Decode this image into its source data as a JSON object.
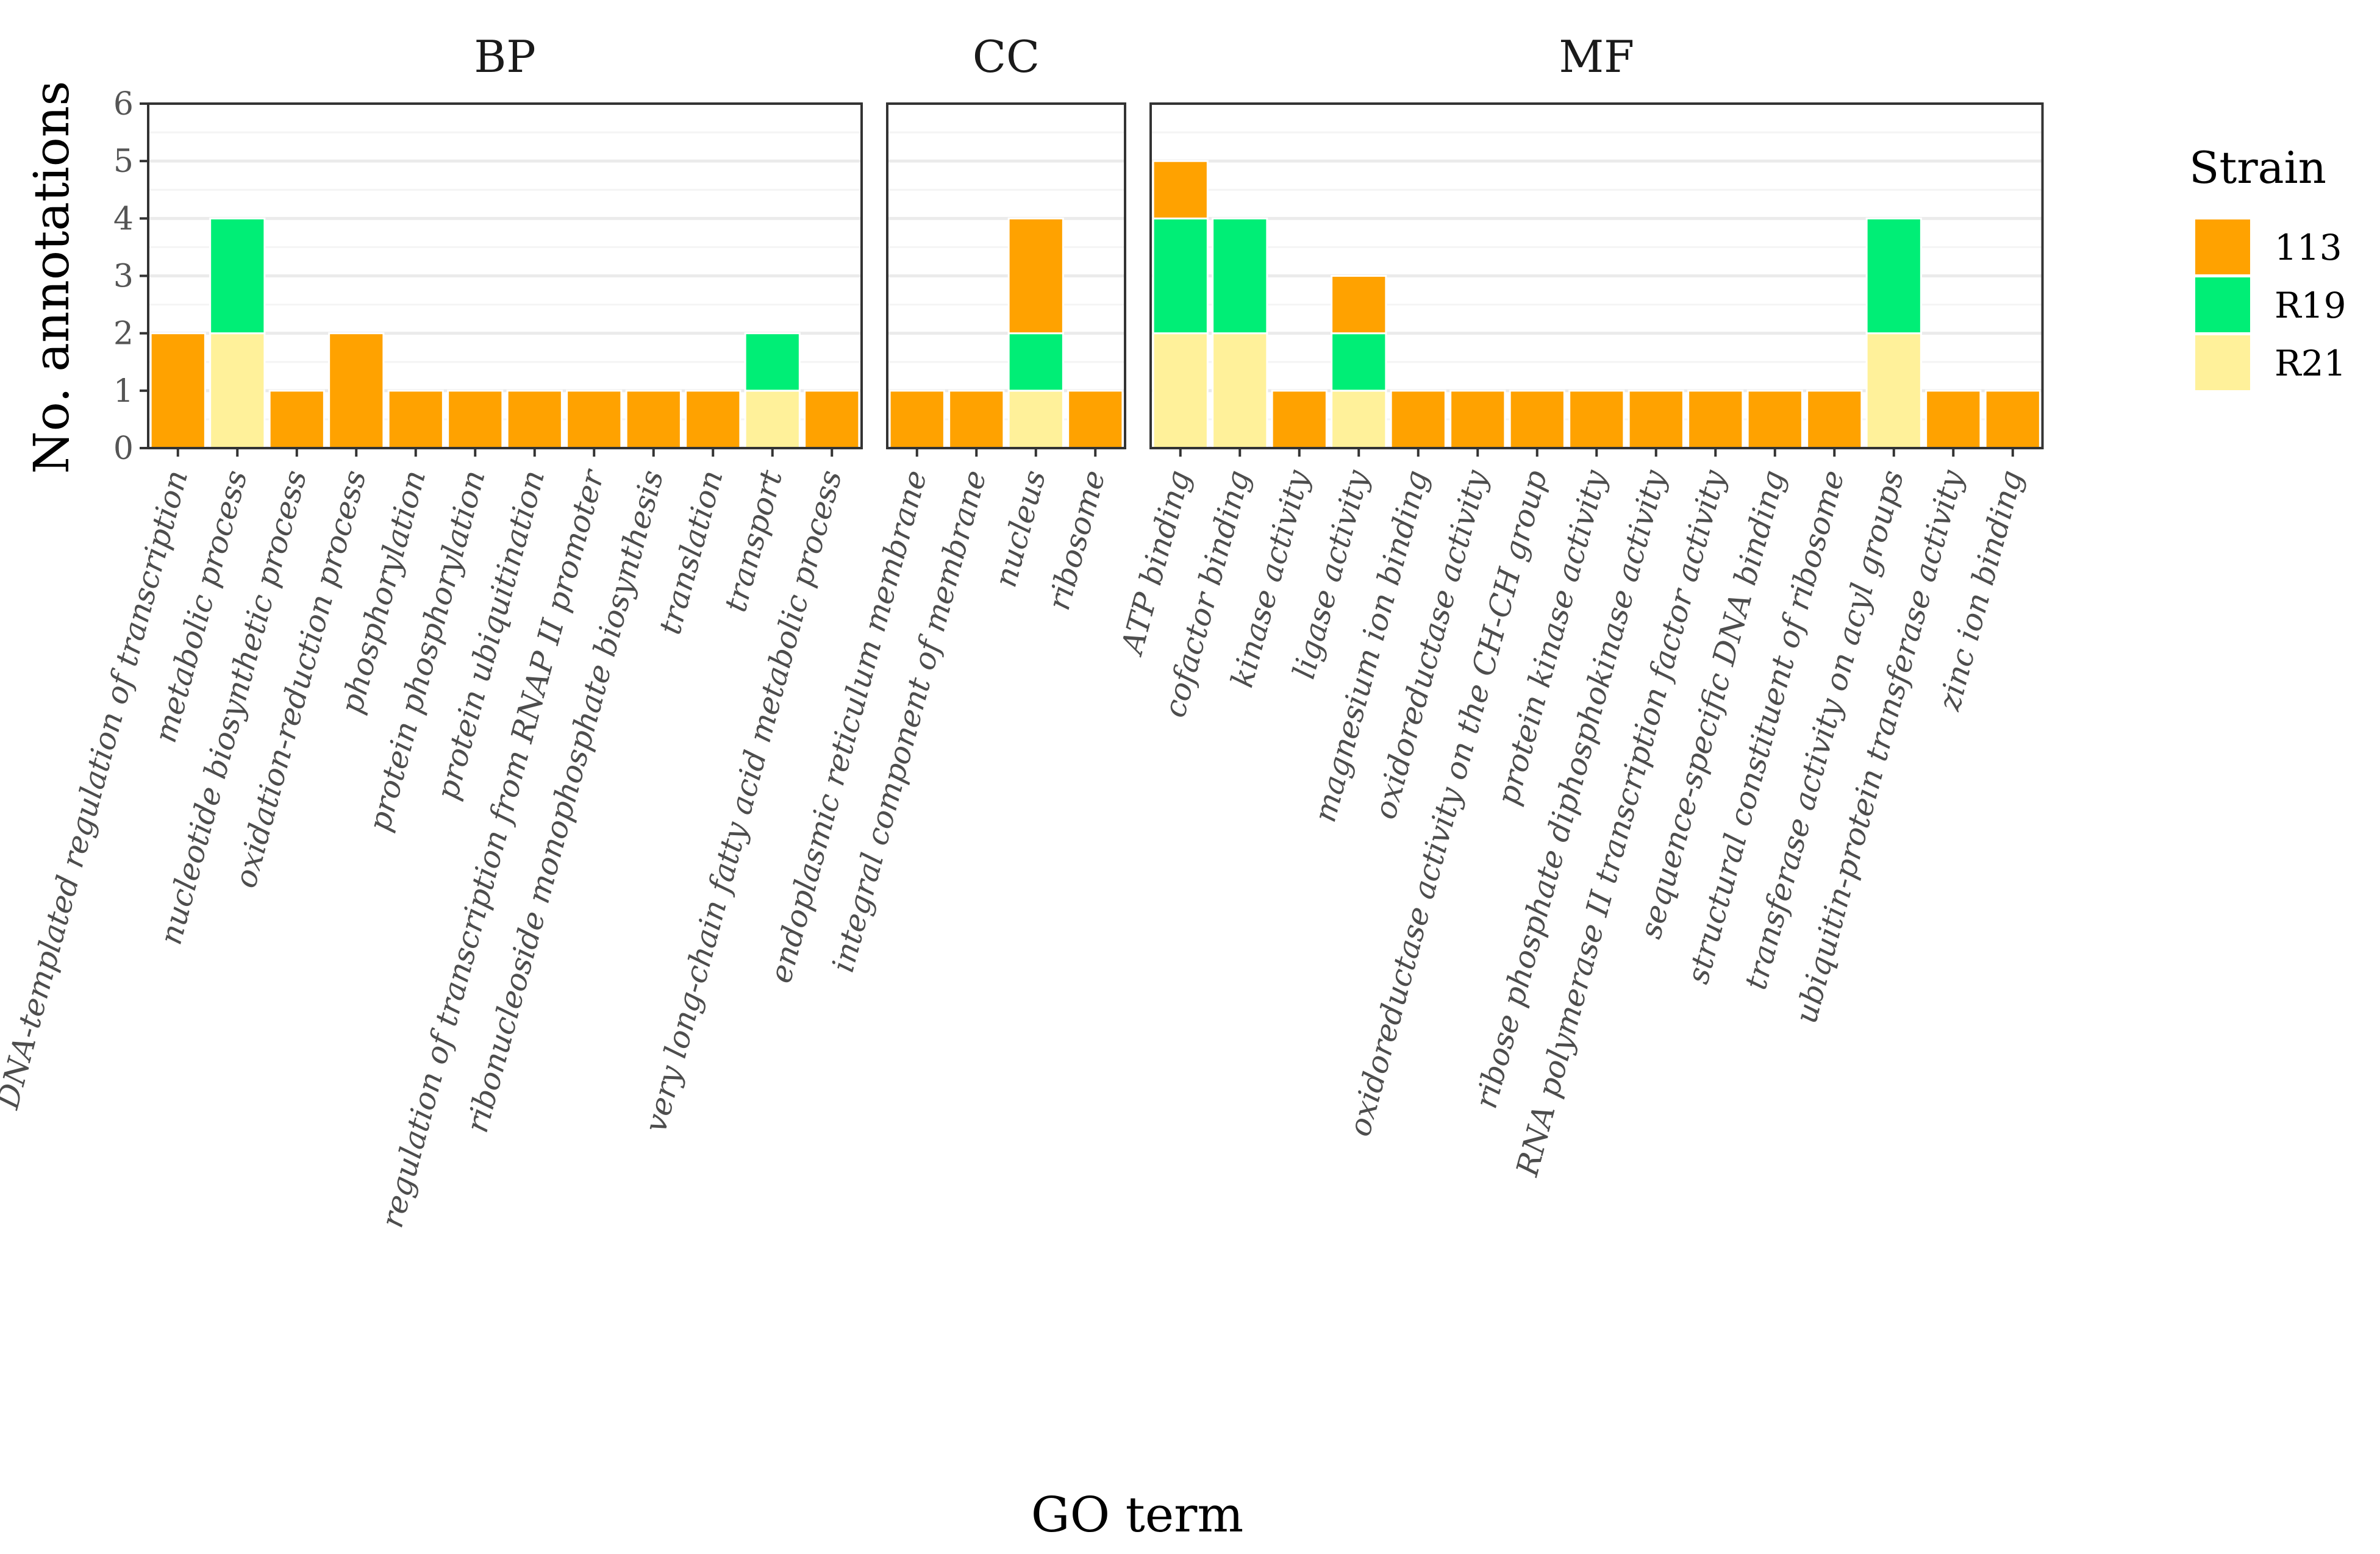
{
  "chart_data": {
    "type": "bar",
    "stacked": true,
    "ylabel": "No. annotations",
    "xlabel": "GO term",
    "ylim": [
      0,
      6
    ],
    "yticks": [
      "0",
      "1",
      "2",
      "3",
      "4",
      "5",
      "6"
    ],
    "colors": {
      "113": "#FFA200",
      "R19": "#00EE76",
      "R21": "#FFF19A"
    },
    "legend": {
      "title": "Strain",
      "items": [
        {
          "key": "113",
          "label": "113"
        },
        {
          "key": "R19",
          "label": "R19"
        },
        {
          "key": "R21",
          "label": "R21"
        }
      ]
    },
    "panels": [
      {
        "name": "BP",
        "categories": [
          {
            "label": "DNA-templated regulation of transcription",
            "R21": 0,
            "R19": 0,
            "113": 2
          },
          {
            "label": "metabolic process",
            "R21": 2,
            "R19": 2,
            "113": 0
          },
          {
            "label": "nucleotide biosynthetic process",
            "R21": 0,
            "R19": 0,
            "113": 1
          },
          {
            "label": "oxidation-reduction process",
            "R21": 0,
            "R19": 0,
            "113": 2
          },
          {
            "label": "phosphorylation",
            "R21": 0,
            "R19": 0,
            "113": 1
          },
          {
            "label": "protein phosphorylation",
            "R21": 0,
            "R19": 0,
            "113": 1
          },
          {
            "label": "protein ubiquitination",
            "R21": 0,
            "R19": 0,
            "113": 1
          },
          {
            "label": "regulation of transcription from RNAP II promoter",
            "R21": 0,
            "R19": 0,
            "113": 1
          },
          {
            "label": "ribonucleoside monophosphate biosynthesis",
            "R21": 0,
            "R19": 0,
            "113": 1
          },
          {
            "label": "translation",
            "R21": 0,
            "R19": 0,
            "113": 1
          },
          {
            "label": "transport",
            "R21": 1,
            "R19": 1,
            "113": 0
          },
          {
            "label": "very long-chain fatty acid metabolic process",
            "R21": 0,
            "R19": 0,
            "113": 1
          }
        ]
      },
      {
        "name": "CC",
        "categories": [
          {
            "label": "endoplasmic reticulum membrane",
            "R21": 0,
            "R19": 0,
            "113": 1
          },
          {
            "label": "integral component of membrane",
            "R21": 0,
            "R19": 0,
            "113": 1
          },
          {
            "label": "nucleus",
            "R21": 1,
            "R19": 1,
            "113": 2
          },
          {
            "label": "ribosome",
            "R21": 0,
            "R19": 0,
            "113": 1
          }
        ]
      },
      {
        "name": "MF",
        "categories": [
          {
            "label": "ATP binding",
            "R21": 2,
            "R19": 2,
            "113": 1
          },
          {
            "label": "cofactor binding",
            "R21": 2,
            "R19": 2,
            "113": 0
          },
          {
            "label": "kinase activity",
            "R21": 0,
            "R19": 0,
            "113": 1
          },
          {
            "label": "ligase activity",
            "R21": 1,
            "R19": 1,
            "113": 1
          },
          {
            "label": "magnesium ion binding",
            "R21": 0,
            "R19": 0,
            "113": 1
          },
          {
            "label": "oxidoreductase activity",
            "R21": 0,
            "R19": 0,
            "113": 1
          },
          {
            "label": "oxidoreductase activity on the CH-CH group",
            "R21": 0,
            "R19": 0,
            "113": 1
          },
          {
            "label": "protein kinase activity",
            "R21": 0,
            "R19": 0,
            "113": 1
          },
          {
            "label": "ribose phosphate diphosphokinase activity",
            "R21": 0,
            "R19": 0,
            "113": 1
          },
          {
            "label": "RNA polymerase II transcription factor activity",
            "R21": 0,
            "R19": 0,
            "113": 1
          },
          {
            "label": "sequence-specific DNA binding",
            "R21": 0,
            "R19": 0,
            "113": 1
          },
          {
            "label": "structural constituent of ribosome",
            "R21": 0,
            "R19": 0,
            "113": 1
          },
          {
            "label": "transferase activity on acyl groups",
            "R21": 2,
            "R19": 2,
            "113": 0
          },
          {
            "label": "ubiquitin-protein transferase activity",
            "R21": 0,
            "R19": 0,
            "113": 1
          },
          {
            "label": "zinc ion binding",
            "R21": 0,
            "R19": 0,
            "113": 1
          }
        ]
      }
    ]
  }
}
